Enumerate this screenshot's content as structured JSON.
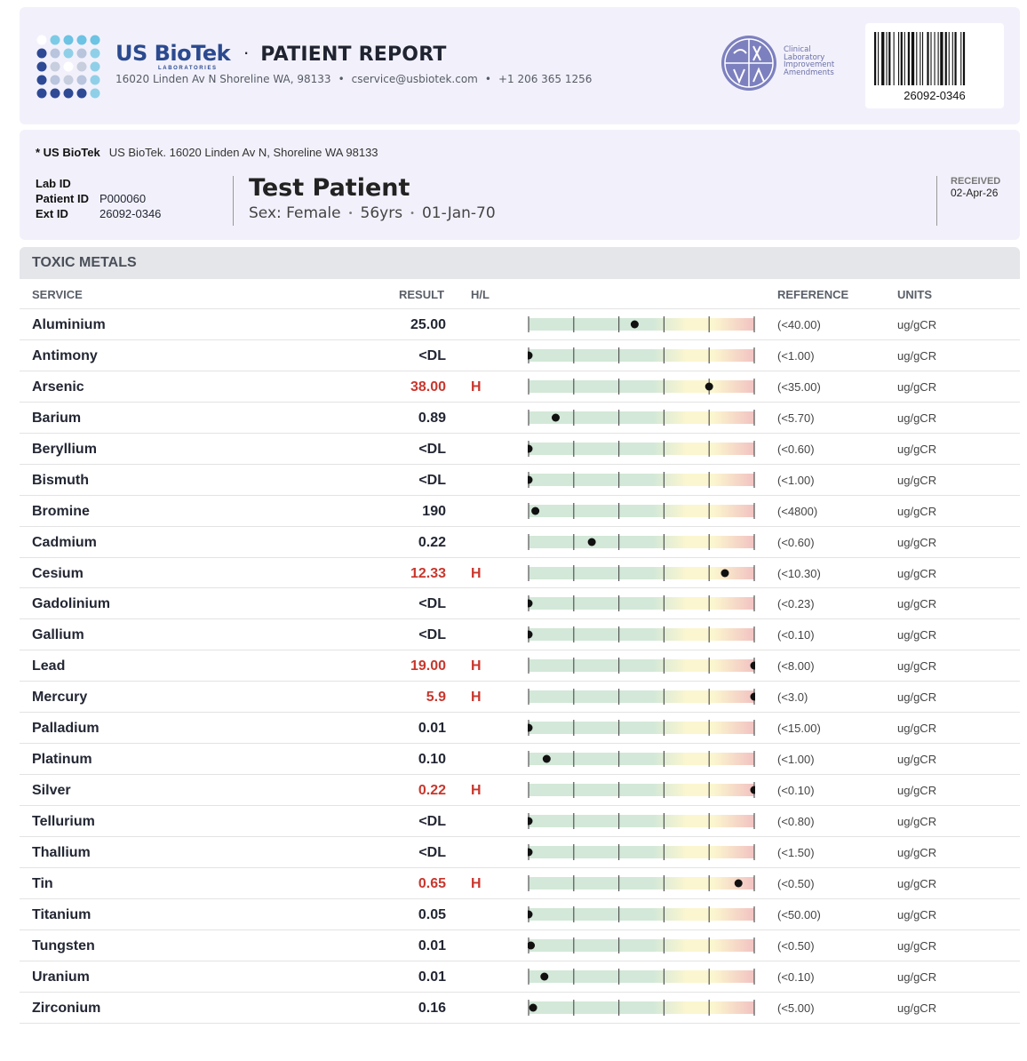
{
  "header": {
    "brand_name": "US BioTek",
    "brand_sub": "LABORATORIES",
    "report_title": "PATIENT REPORT",
    "address": "16020 Linden Av N Shoreline WA, 98133",
    "email": "cservice@usbiotek.com",
    "phone": "+1 206 365 1256",
    "clia_line1": "Clinical",
    "clia_line2": "Laboratory",
    "clia_line3": "Improvement",
    "clia_line4": "Amendments",
    "barcode_number": "26092-0346"
  },
  "patient": {
    "lab_name": "* US BioTek",
    "lab_address": "US BioTek. 16020 Linden Av N, Shoreline WA 98133",
    "lab_id_label": "Lab ID",
    "lab_id": "",
    "patient_id_label": "Patient ID",
    "patient_id": "P000060",
    "ext_id_label": "Ext ID",
    "ext_id": "26092-0346",
    "name": "Test Patient",
    "sex": "Sex: Female",
    "age": "56yrs",
    "dob": "01-Jan-70",
    "received_label": "RECEIVED",
    "received_date": "02-Apr-26"
  },
  "section": {
    "title": "TOXIC METALS",
    "col_service": "SERVICE",
    "col_result": "RESULT",
    "col_hl": "H/L",
    "col_reference": "REFERENCE",
    "col_units": "UNITS"
  },
  "colors": {
    "high": "#c8372d",
    "green": "#d3e8d8",
    "yellow": "#fbf6cf",
    "red": "#f2c2c2"
  },
  "results": [
    {
      "service": "Aluminium",
      "result": "25.00",
      "flag": "",
      "reference": "(<40.00)",
      "units": "ug/gCR",
      "level": 0.47
    },
    {
      "service": "Antimony",
      "result": "<DL",
      "flag": "",
      "reference": "(<1.00)",
      "units": "ug/gCR",
      "level": 0.0
    },
    {
      "service": "Arsenic",
      "result": "38.00",
      "flag": "H",
      "reference": "(<35.00)",
      "units": "ug/gCR",
      "level": 0.8
    },
    {
      "service": "Barium",
      "result": "0.89",
      "flag": "",
      "reference": "(<5.70)",
      "units": "ug/gCR",
      "level": 0.12
    },
    {
      "service": "Beryllium",
      "result": "<DL",
      "flag": "",
      "reference": "(<0.60)",
      "units": "ug/gCR",
      "level": 0.0
    },
    {
      "service": "Bismuth",
      "result": "<DL",
      "flag": "",
      "reference": "(<1.00)",
      "units": "ug/gCR",
      "level": 0.0
    },
    {
      "service": "Bromine",
      "result": "190",
      "flag": "",
      "reference": "(<4800)",
      "units": "ug/gCR",
      "level": 0.03
    },
    {
      "service": "Cadmium",
      "result": "0.22",
      "flag": "",
      "reference": "(<0.60)",
      "units": "ug/gCR",
      "level": 0.28
    },
    {
      "service": "Cesium",
      "result": "12.33",
      "flag": "H",
      "reference": "(<10.30)",
      "units": "ug/gCR",
      "level": 0.87
    },
    {
      "service": "Gadolinium",
      "result": "<DL",
      "flag": "",
      "reference": "(<0.23)",
      "units": "ug/gCR",
      "level": 0.0
    },
    {
      "service": "Gallium",
      "result": "<DL",
      "flag": "",
      "reference": "(<0.10)",
      "units": "ug/gCR",
      "level": 0.0
    },
    {
      "service": "Lead",
      "result": "19.00",
      "flag": "H",
      "reference": "(<8.00)",
      "units": "ug/gCR",
      "level": 1.0
    },
    {
      "service": "Mercury",
      "result": "5.9",
      "flag": "H",
      "reference": "(<3.0)",
      "units": "ug/gCR",
      "level": 1.0
    },
    {
      "service": "Palladium",
      "result": "0.01",
      "flag": "",
      "reference": "(<15.00)",
      "units": "ug/gCR",
      "level": 0.0
    },
    {
      "service": "Platinum",
      "result": "0.10",
      "flag": "",
      "reference": "(<1.00)",
      "units": "ug/gCR",
      "level": 0.08
    },
    {
      "service": "Silver",
      "result": "0.22",
      "flag": "H",
      "reference": "(<0.10)",
      "units": "ug/gCR",
      "level": 1.0
    },
    {
      "service": "Tellurium",
      "result": "<DL",
      "flag": "",
      "reference": "(<0.80)",
      "units": "ug/gCR",
      "level": 0.0
    },
    {
      "service": "Thallium",
      "result": "<DL",
      "flag": "",
      "reference": "(<1.50)",
      "units": "ug/gCR",
      "level": 0.0
    },
    {
      "service": "Tin",
      "result": "0.65",
      "flag": "H",
      "reference": "(<0.50)",
      "units": "ug/gCR",
      "level": 0.93
    },
    {
      "service": "Titanium",
      "result": "0.05",
      "flag": "",
      "reference": "(<50.00)",
      "units": "ug/gCR",
      "level": 0.0
    },
    {
      "service": "Tungsten",
      "result": "0.01",
      "flag": "",
      "reference": "(<0.50)",
      "units": "ug/gCR",
      "level": 0.01
    },
    {
      "service": "Uranium",
      "result": "0.01",
      "flag": "",
      "reference": "(<0.10)",
      "units": "ug/gCR",
      "level": 0.07
    },
    {
      "service": "Zirconium",
      "result": "0.16",
      "flag": "",
      "reference": "(<5.00)",
      "units": "ug/gCR",
      "level": 0.02
    }
  ]
}
